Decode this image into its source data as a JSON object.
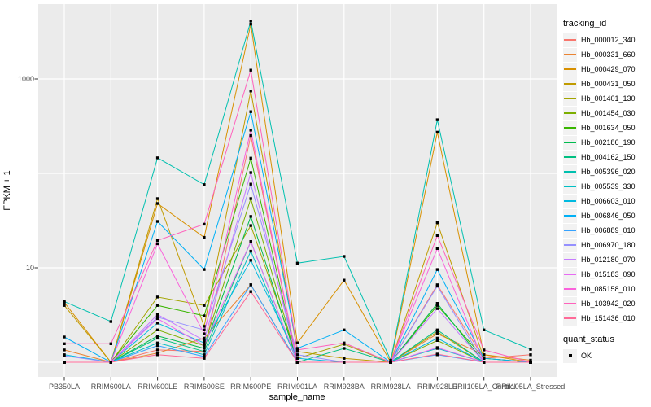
{
  "axes": {
    "y_title": "FPKM + 1",
    "x_title": "sample_name"
  },
  "legend": {
    "tracking_title": "tracking_id",
    "quant_title": "quant_status",
    "quant_items": [
      "OK"
    ]
  },
  "chart_data": {
    "type": "line",
    "title": "",
    "xlabel": "sample_name",
    "ylabel": "FPKM + 1",
    "y_scale": "log10",
    "ylim": [
      0.7,
      6200
    ],
    "grid": true,
    "legend_position": "right",
    "panel_background": "#EBEBEB",
    "grid_color": "#FFFFFF",
    "tick_color": "#333333",
    "tick_text_color": "#4D4D4D",
    "point_color": "#000000",
    "point_shape": "square",
    "quant_status_value": "OK",
    "y_ticks": [
      {
        "value": 1000,
        "label": "1000"
      },
      {
        "value": 10,
        "label": "10"
      }
    ],
    "y_gridlines": [
      1,
      10,
      100,
      1000
    ],
    "categories": [
      "PB350LA",
      "RRIM600LA",
      "RRIM600LE",
      "RRIM600SE",
      "RRIM600PE",
      "RRIM901LA",
      "RRIM928BA",
      "RRIM928LA",
      "RRIM928LE",
      "RRII105LA_Control",
      "RRII105LA_Stressed"
    ],
    "series": [
      {
        "name": "Hb_000012_340",
        "color": "#F8766D",
        "values": [
          1.0,
          1.0,
          1.35,
          1.3,
          251,
          1.0,
          1.0,
          1.0,
          6.6,
          1.1,
          1.2
        ]
      },
      {
        "name": "Hb_000331_660",
        "color": "#EA8331",
        "values": [
          1.35,
          1.0,
          1.25,
          1.8,
          6.6,
          1.0,
          1.0,
          1.0,
          2.0,
          1.2,
          1.05
        ]
      },
      {
        "name": "Hb_000429_070",
        "color": "#D89000",
        "values": [
          4.3,
          1.0,
          48,
          21,
          3800,
          1.6,
          7.4,
          1.0,
          273,
          1.2,
          1.0
        ]
      },
      {
        "name": "Hb_000431_050",
        "color": "#C09B00",
        "values": [
          4.0,
          1.0,
          54,
          2.4,
          745,
          1.3,
          1.1,
          1.0,
          30,
          1.1,
          1.0
        ]
      },
      {
        "name": "Hb_001401_130",
        "color": "#A3A500",
        "values": [
          1.0,
          1.0,
          4.9,
          4.0,
          28,
          1.1,
          1.55,
          1.0,
          2.1,
          1.0,
          1.0
        ]
      },
      {
        "name": "Hb_001454_030",
        "color": "#7CAE00",
        "values": [
          1.0,
          1.0,
          2.2,
          1.5,
          54,
          1.0,
          1.0,
          1.0,
          1.7,
          1.0,
          1.0
        ]
      },
      {
        "name": "Hb_001634_050",
        "color": "#39B600",
        "values": [
          1.0,
          1.0,
          4.0,
          3.1,
          145,
          1.0,
          1.0,
          1.0,
          4.0,
          1.1,
          1.0
        ]
      },
      {
        "name": "Hb_002186_190",
        "color": "#00BB4E",
        "values": [
          1.0,
          1.0,
          1.9,
          1.4,
          35,
          1.0,
          1.0,
          1.0,
          4.2,
          1.0,
          1.0
        ]
      },
      {
        "name": "Hb_004162_150",
        "color": "#00C081",
        "values": [
          1.0,
          1.0,
          1.8,
          1.3,
          19,
          1.0,
          1.4,
          1.0,
          2.2,
          1.0,
          1.0
        ]
      },
      {
        "name": "Hb_005396_020",
        "color": "#00C0AF",
        "values": [
          4.4,
          2.7,
          146,
          76,
          4100,
          11.2,
          13.2,
          1.05,
          370,
          2.2,
          1.37
        ]
      },
      {
        "name": "Hb_005539_330",
        "color": "#00BFC4",
        "values": [
          1.0,
          1.0,
          1.6,
          1.2,
          15,
          1.0,
          1.0,
          1.0,
          1.4,
          1.0,
          1.0
        ]
      },
      {
        "name": "Hb_006603_010",
        "color": "#00BAE0",
        "values": [
          1.2,
          1.0,
          2.6,
          1.6,
          12,
          1.1,
          1.0,
          1.0,
          1.8,
          1.0,
          1.0
        ]
      },
      {
        "name": "Hb_006846_050",
        "color": "#00B0F6",
        "values": [
          1.85,
          1.0,
          31,
          9.6,
          450,
          1.4,
          2.2,
          1.0,
          9.6,
          1.1,
          1.0
        ]
      },
      {
        "name": "Hb_006889_010",
        "color": "#35A2FF",
        "values": [
          1.0,
          1.0,
          1.5,
          1.15,
          6.6,
          1.0,
          1.0,
          1.0,
          1.2,
          1.0,
          1.0
        ]
      },
      {
        "name": "Hb_006970_180",
        "color": "#9590FF",
        "values": [
          1.17,
          1.0,
          3.0,
          2.2,
          77,
          1.2,
          1.0,
          1.0,
          6.4,
          1.0,
          1.0
        ]
      },
      {
        "name": "Hb_012180_070",
        "color": "#C77CFF",
        "values": [
          1.0,
          1.0,
          3.2,
          1.7,
          102,
          1.0,
          1.0,
          1.0,
          3.7,
          1.0,
          1.0
        ]
      },
      {
        "name": "Hb_015183_090",
        "color": "#E76BF3",
        "values": [
          1.0,
          1.0,
          2.9,
          1.5,
          19,
          1.0,
          1.0,
          1.0,
          1.43,
          1.0,
          1.0
        ]
      },
      {
        "name": "Hb_085158_010",
        "color": "#FA62DB",
        "values": [
          1.0,
          1.0,
          18,
          2.0,
          287,
          1.0,
          1.0,
          1.0,
          16,
          1.0,
          1.0
        ]
      },
      {
        "name": "Hb_103942_020",
        "color": "#FF62BC",
        "values": [
          1.57,
          1.57,
          19.5,
          29,
          1240,
          1.35,
          1.6,
          1.0,
          22,
          1.35,
          1.0
        ]
      },
      {
        "name": "Hb_151436_010",
        "color": "#FF6A98",
        "values": [
          1.0,
          1.0,
          1.2,
          1.1,
          5.6,
          1.0,
          1.0,
          1.0,
          1.22,
          1.0,
          1.0
        ]
      }
    ]
  }
}
